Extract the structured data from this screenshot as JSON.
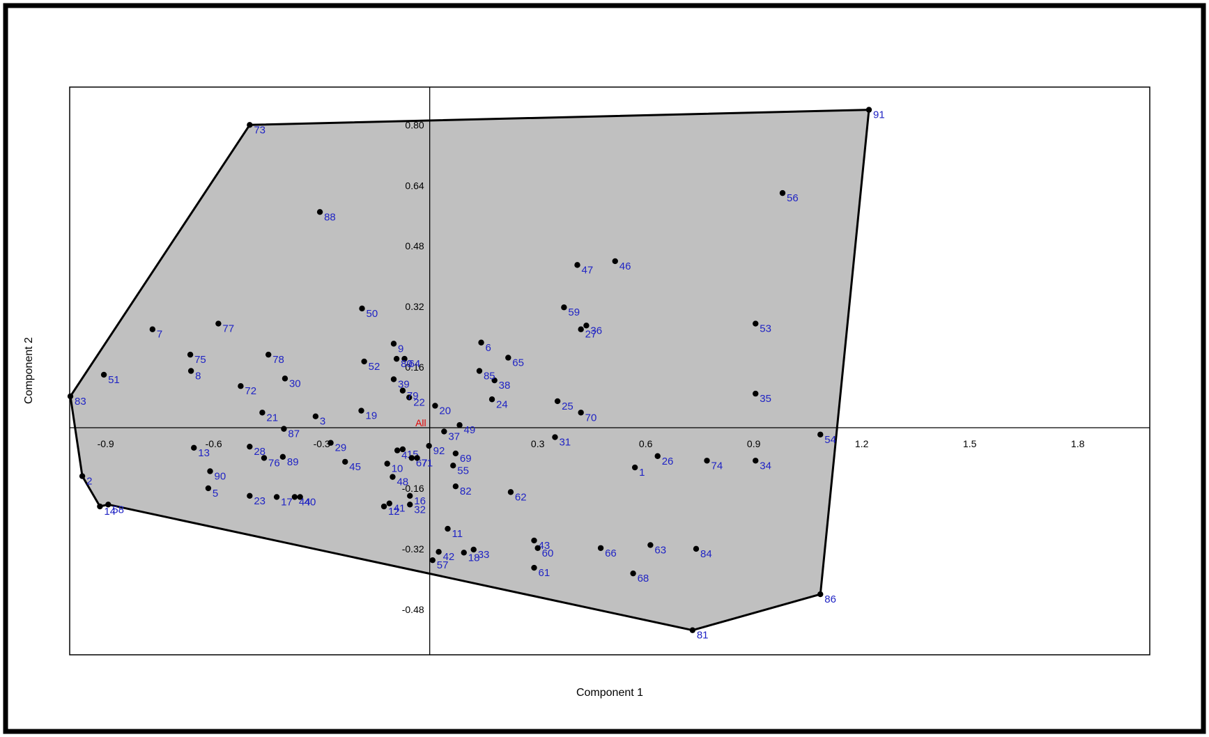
{
  "chart_data": {
    "type": "scatter",
    "title": "",
    "xlabel": "Component 1",
    "ylabel": "Component 2",
    "xlim": [
      -1.0,
      2.0
    ],
    "ylim": [
      -0.6,
      0.9
    ],
    "x_ticks": [
      -0.9,
      -0.6,
      -0.3,
      0.3,
      0.6,
      0.9,
      1.2,
      1.5,
      1.8
    ],
    "x_tick_labels": [
      "-0.9",
      "-0.6",
      "-0.3",
      "0.3",
      "0.6",
      "0.9",
      "1.2",
      "1.5",
      "1.8"
    ],
    "y_ticks": [
      0.8,
      0.64,
      0.48,
      0.32,
      0.16,
      -0.16,
      -0.32,
      -0.48
    ],
    "y_tick_labels": [
      "0.80",
      "0.64",
      "0.48",
      "0.32",
      "0.16",
      "-0.16",
      "-0.32",
      "-0.48"
    ],
    "centroid_label": "All",
    "colors": {
      "hull_fill": "#c0c0c0",
      "point": "#000000",
      "label": "#1f23c4",
      "centroid": "#e00000"
    },
    "points": [
      {
        "label": "1",
        "x": 0.57,
        "y": -0.105
      },
      {
        "label": "2",
        "x": -0.965,
        "y": -0.128
      },
      {
        "label": "3",
        "x": -0.317,
        "y": 0.03
      },
      {
        "label": "4",
        "x": -0.09,
        "y": -0.06
      },
      {
        "label": "5",
        "x": -0.615,
        "y": -0.16
      },
      {
        "label": "6",
        "x": 0.143,
        "y": 0.225
      },
      {
        "label": "7",
        "x": -0.77,
        "y": 0.26
      },
      {
        "label": "8",
        "x": -0.663,
        "y": 0.15
      },
      {
        "label": "9",
        "x": -0.1,
        "y": 0.222
      },
      {
        "label": "10",
        "x": -0.118,
        "y": -0.095
      },
      {
        "label": "11",
        "x": 0.05,
        "y": -0.267
      },
      {
        "label": "12",
        "x": -0.127,
        "y": -0.208
      },
      {
        "label": "13",
        "x": -0.655,
        "y": -0.053
      },
      {
        "label": "14",
        "x": -0.916,
        "y": -0.208
      },
      {
        "label": "15",
        "x": -0.075,
        "y": -0.057
      },
      {
        "label": "16",
        "x": -0.055,
        "y": -0.18
      },
      {
        "label": "17",
        "x": -0.425,
        "y": -0.183
      },
      {
        "label": "18",
        "x": 0.095,
        "y": -0.33
      },
      {
        "label": "19",
        "x": -0.19,
        "y": 0.045
      },
      {
        "label": "20",
        "x": 0.015,
        "y": 0.058
      },
      {
        "label": "21",
        "x": -0.465,
        "y": 0.04
      },
      {
        "label": "22",
        "x": -0.057,
        "y": 0.08
      },
      {
        "label": "23",
        "x": -0.5,
        "y": -0.18
      },
      {
        "label": "24",
        "x": 0.173,
        "y": 0.075
      },
      {
        "label": "25",
        "x": 0.355,
        "y": 0.07
      },
      {
        "label": "26",
        "x": 0.633,
        "y": -0.075
      },
      {
        "label": "27",
        "x": 0.42,
        "y": 0.26
      },
      {
        "label": "28",
        "x": -0.5,
        "y": -0.05
      },
      {
        "label": "29",
        "x": -0.275,
        "y": -0.04
      },
      {
        "label": "30",
        "x": -0.402,
        "y": 0.13
      },
      {
        "label": "31",
        "x": 0.348,
        "y": -0.025
      },
      {
        "label": "32",
        "x": -0.055,
        "y": -0.203
      },
      {
        "label": "33",
        "x": 0.122,
        "y": -0.322
      },
      {
        "label": "34",
        "x": 0.905,
        "y": -0.087
      },
      {
        "label": "35",
        "x": 0.905,
        "y": 0.09
      },
      {
        "label": "36",
        "x": 0.435,
        "y": 0.27
      },
      {
        "label": "37",
        "x": 0.04,
        "y": -0.01
      },
      {
        "label": "38",
        "x": 0.18,
        "y": 0.125
      },
      {
        "label": "39",
        "x": -0.1,
        "y": 0.128
      },
      {
        "label": "40",
        "x": -0.36,
        "y": -0.183
      },
      {
        "label": "41",
        "x": -0.112,
        "y": -0.2
      },
      {
        "label": "42",
        "x": 0.025,
        "y": -0.328
      },
      {
        "label": "43",
        "x": 0.29,
        "y": -0.298
      },
      {
        "label": "44",
        "x": -0.375,
        "y": -0.183
      },
      {
        "label": "45",
        "x": -0.235,
        "y": -0.09
      },
      {
        "label": "46",
        "x": 0.515,
        "y": 0.44
      },
      {
        "label": "47",
        "x": 0.41,
        "y": 0.43
      },
      {
        "label": "48",
        "x": -0.103,
        "y": -0.13
      },
      {
        "label": "49",
        "x": 0.083,
        "y": 0.007
      },
      {
        "label": "50",
        "x": -0.188,
        "y": 0.315
      },
      {
        "label": "51",
        "x": -0.905,
        "y": 0.14
      },
      {
        "label": "52",
        "x": -0.182,
        "y": 0.175
      },
      {
        "label": "53",
        "x": 0.905,
        "y": 0.275
      },
      {
        "label": "54",
        "x": 1.085,
        "y": -0.018
      },
      {
        "label": "55",
        "x": 0.065,
        "y": -0.1
      },
      {
        "label": "56",
        "x": 0.98,
        "y": 0.62
      },
      {
        "label": "57",
        "x": 0.008,
        "y": -0.35
      },
      {
        "label": "58",
        "x": -0.893,
        "y": -0.203
      },
      {
        "label": "59",
        "x": 0.373,
        "y": 0.318
      },
      {
        "label": "60",
        "x": 0.3,
        "y": -0.318
      },
      {
        "label": "61",
        "x": 0.29,
        "y": -0.37
      },
      {
        "label": "62",
        "x": 0.225,
        "y": -0.17
      },
      {
        "label": "63",
        "x": 0.613,
        "y": -0.31
      },
      {
        "label": "64",
        "x": -0.07,
        "y": 0.182
      },
      {
        "label": "65",
        "x": 0.218,
        "y": 0.185
      },
      {
        "label": "66",
        "x": 0.475,
        "y": -0.318
      },
      {
        "label": "67",
        "x": -0.05,
        "y": -0.08
      },
      {
        "label": "68",
        "x": 0.565,
        "y": -0.385
      },
      {
        "label": "69",
        "x": 0.072,
        "y": -0.068
      },
      {
        "label": "70",
        "x": 0.42,
        "y": 0.04
      },
      {
        "label": "71",
        "x": -0.035,
        "y": -0.08
      },
      {
        "label": "72",
        "x": -0.525,
        "y": 0.11
      },
      {
        "label": "73",
        "x": -0.5,
        "y": 0.8
      },
      {
        "label": "74",
        "x": 0.77,
        "y": -0.087
      },
      {
        "label": "75",
        "x": -0.665,
        "y": 0.193
      },
      {
        "label": "76",
        "x": -0.46,
        "y": -0.08
      },
      {
        "label": "77",
        "x": -0.587,
        "y": 0.275
      },
      {
        "label": "78",
        "x": -0.448,
        "y": 0.193
      },
      {
        "label": "79",
        "x": -0.075,
        "y": 0.098
      },
      {
        "label": "80",
        "x": -0.092,
        "y": 0.182
      },
      {
        "label": "81",
        "x": 0.73,
        "y": -0.535
      },
      {
        "label": "82",
        "x": 0.072,
        "y": -0.155
      },
      {
        "label": "83",
        "x": -0.998,
        "y": 0.083
      },
      {
        "label": "84",
        "x": 0.74,
        "y": -0.32
      },
      {
        "label": "85",
        "x": 0.138,
        "y": 0.15
      },
      {
        "label": "86",
        "x": 1.085,
        "y": -0.44
      },
      {
        "label": "87",
        "x": -0.405,
        "y": -0.003
      },
      {
        "label": "88",
        "x": -0.305,
        "y": 0.57
      },
      {
        "label": "89",
        "x": -0.408,
        "y": -0.077
      },
      {
        "label": "90",
        "x": -0.61,
        "y": -0.115
      },
      {
        "label": "91",
        "x": 1.22,
        "y": 0.84
      },
      {
        "label": "92",
        "x": -0.002,
        "y": -0.048
      }
    ],
    "centroid": {
      "x": 0,
      "y": 0
    },
    "hull": [
      "91",
      "86",
      "81",
      "58",
      "14",
      "2",
      "83",
      "73"
    ]
  }
}
